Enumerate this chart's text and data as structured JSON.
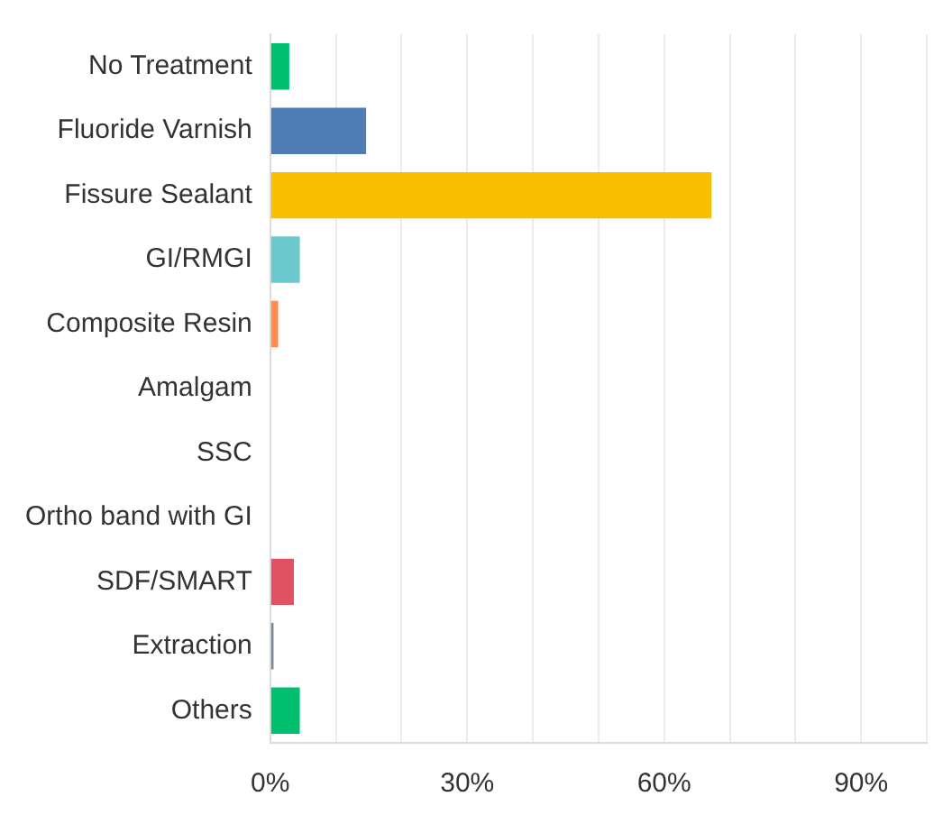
{
  "chart_data": {
    "type": "bar",
    "orientation": "horizontal",
    "categories": [
      "No Treatment",
      "Fluoride Varnish",
      "Fissure Sealant",
      "GI/RMGI",
      "Composite Resin",
      "Amalgam",
      "SSC",
      "Ortho band with GI",
      "SDF/SMART",
      "Extraction",
      "Others"
    ],
    "values": [
      2.9,
      14.6,
      67.2,
      4.5,
      1.2,
      0,
      0,
      0,
      3.6,
      0.5,
      4.5
    ],
    "colors": [
      "#00bf6f",
      "#507cb6",
      "#f9be00",
      "#6bc8cd",
      "#ff8b4f",
      "#a9a9a9",
      "#a9a9a9",
      "#a9a9a9",
      "#e05263",
      "#7d8a96",
      "#00bf6f"
    ],
    "xlim": [
      0,
      100
    ],
    "xticks": [
      {
        "value": 0,
        "label": "0%"
      },
      {
        "value": 10,
        "label": null
      },
      {
        "value": 20,
        "label": null
      },
      {
        "value": 30,
        "label": "30%"
      },
      {
        "value": 40,
        "label": null
      },
      {
        "value": 50,
        "label": null
      },
      {
        "value": 60,
        "label": "60%"
      },
      {
        "value": 70,
        "label": null
      },
      {
        "value": 80,
        "label": null
      },
      {
        "value": 90,
        "label": "90%"
      },
      {
        "value": 100,
        "label": null
      }
    ],
    "grid": "x",
    "legend": false
  }
}
